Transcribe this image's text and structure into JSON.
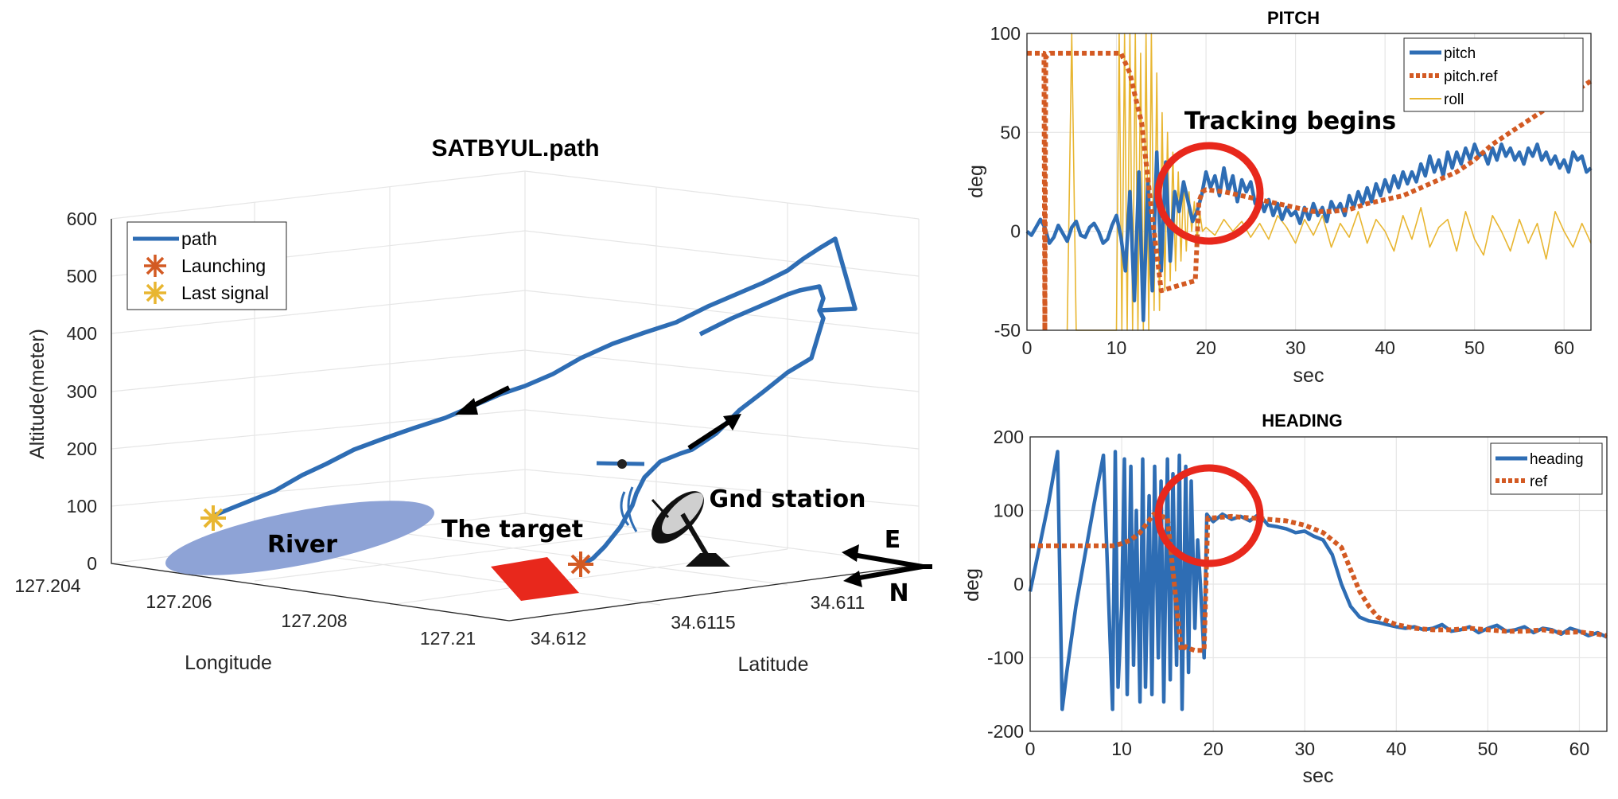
{
  "chart_data": [
    {
      "type": "line3d",
      "title": "SATBYUL.path",
      "xlabel": "Longitude",
      "ylabel": "Latitude",
      "zlabel": "Altitude(meter)",
      "xticks": [
        "127.204",
        "127.206",
        "127.208",
        "127.21"
      ],
      "yticks": [
        "34.612",
        "34.6115",
        "34.611"
      ],
      "zticks": [
        "0",
        "100",
        "200",
        "300",
        "400",
        "500",
        "600"
      ],
      "legend": [
        "path",
        "Launching",
        "Last signal"
      ],
      "annotations": {
        "river": "River",
        "target": "The target",
        "gnd_station": "Gnd station",
        "compass_e": "E",
        "compass_n": "N"
      },
      "colors": {
        "path": "#2e6db4",
        "launching": "#d35a23",
        "last_signal": "#e8b631",
        "river": "#8ea3d6",
        "target": "#e8281c"
      }
    },
    {
      "type": "line",
      "title": "PITCH",
      "xlabel": "sec",
      "ylabel": "deg",
      "xlim": [
        0,
        63
      ],
      "ylim": [
        -50,
        100
      ],
      "xticks": [
        "0",
        "10",
        "20",
        "30",
        "40",
        "50",
        "60"
      ],
      "yticks": [
        "-50",
        "0",
        "50",
        "100"
      ],
      "annotation": "Tracking begins",
      "series": [
        {
          "name": "pitch",
          "color": "#2e6db4",
          "x": [
            0,
            0.5,
            1,
            1.5,
            2,
            2.5,
            3,
            3.5,
            4,
            4.5,
            5,
            5.5,
            6,
            6.5,
            7,
            7.5,
            8,
            8.5,
            9,
            9.5,
            10,
            10.5,
            11,
            11.5,
            12,
            12.5,
            13,
            13.5,
            14,
            14.5,
            15,
            15.5,
            16,
            16.5,
            17,
            17.5,
            18,
            18.5,
            19,
            19.5,
            20,
            20.5,
            21,
            21.5,
            22,
            22.5,
            23,
            23.5,
            24,
            24.5,
            25,
            25.5,
            26,
            26.5,
            27,
            27.5,
            28,
            28.5,
            29,
            29.5,
            30,
            30.5,
            31,
            31.5,
            32,
            32.5,
            33,
            33.5,
            34,
            34.5,
            35,
            35.5,
            36,
            36.5,
            37,
            37.5,
            38,
            38.5,
            39,
            39.5,
            40,
            40.5,
            41,
            41.5,
            42,
            42.5,
            43,
            43.5,
            44,
            44.5,
            45,
            45.5,
            46,
            46.5,
            47,
            47.5,
            48,
            48.5,
            49,
            49.5,
            50,
            50.5,
            51,
            51.5,
            52,
            52.5,
            53,
            53.5,
            54,
            54.5,
            55,
            55.5,
            56,
            56.5,
            57,
            57.5,
            58,
            58.5,
            59,
            59.5,
            60,
            60.5,
            61,
            61.5,
            62,
            62.5,
            63
          ],
          "values": [
            0,
            -2,
            2,
            6,
            2,
            -6,
            -3,
            3,
            -1,
            -5,
            2,
            5,
            -2,
            -3,
            2,
            4,
            0,
            -6,
            -4,
            3,
            8,
            -3,
            -20,
            20,
            -35,
            30,
            -45,
            25,
            -30,
            40,
            -20,
            35,
            -15,
            20,
            10,
            25,
            15,
            5,
            10,
            18,
            30,
            22,
            28,
            18,
            32,
            20,
            28,
            15,
            26,
            20,
            25,
            14,
            18,
            10,
            16,
            8,
            14,
            6,
            12,
            8,
            10,
            4,
            12,
            6,
            14,
            8,
            12,
            5,
            15,
            10,
            14,
            8,
            18,
            12,
            20,
            14,
            22,
            15,
            24,
            18,
            26,
            20,
            28,
            22,
            30,
            24,
            30,
            25,
            34,
            28,
            38,
            30,
            36,
            28,
            40,
            32,
            40,
            34,
            42,
            36,
            44,
            38,
            40,
            34,
            42,
            36,
            44,
            38,
            42,
            36,
            40,
            34,
            42,
            38,
            44,
            36,
            40,
            34,
            38,
            32,
            36,
            30,
            40,
            36,
            38,
            30,
            32
          ]
        },
        {
          "name": "pitch.ref",
          "color": "#d35a23",
          "x": [
            0,
            1.9,
            2.0,
            2.1,
            2.6,
            10.5,
            11.5,
            12.0,
            12.8,
            13.8,
            15.0,
            16.5,
            18.0,
            18.8,
            19.2,
            19.6,
            20.0,
            22,
            24,
            26,
            28,
            30,
            32,
            34,
            36,
            38,
            40,
            42,
            44,
            46,
            48,
            50,
            52,
            54,
            56,
            58,
            60,
            62,
            63
          ],
          "values": [
            90,
            90,
            -50,
            88,
            90,
            90,
            80,
            70,
            55,
            15,
            -30,
            -28,
            -26,
            -25,
            15,
            20,
            21,
            20,
            18,
            16,
            14,
            12,
            10,
            10,
            11,
            14,
            16,
            18,
            22,
            26,
            30,
            36,
            44,
            50,
            56,
            62,
            68,
            73,
            76
          ]
        },
        {
          "name": "roll",
          "color": "#e8b631",
          "x": [
            4.5,
            5,
            5.5,
            10,
            10.3,
            10.6,
            10.9,
            11.2,
            11.5,
            11.8,
            12.1,
            12.4,
            12.7,
            13,
            13.3,
            13.6,
            13.9,
            14.2,
            14.5,
            14.8,
            15.1,
            15.4,
            15.7,
            16,
            16.3,
            16.6,
            16.9,
            17.2,
            17.5,
            17.8,
            18.1,
            18.4,
            18.7,
            19,
            19.3,
            19.6,
            20,
            21,
            22,
            23,
            24,
            25,
            26,
            27,
            28,
            29,
            30,
            31,
            32,
            33,
            34,
            35,
            36,
            37,
            38,
            39,
            40,
            41,
            42,
            43,
            44,
            45,
            46,
            47,
            48,
            49,
            50,
            51,
            52,
            53,
            54,
            55,
            56,
            57,
            58,
            59,
            60,
            61,
            62,
            63
          ],
          "values": [
            -50,
            100,
            -50,
            -50,
            100,
            -50,
            100,
            -50,
            100,
            -50,
            100,
            -50,
            90,
            -50,
            100,
            -50,
            100,
            -40,
            80,
            -40,
            60,
            -30,
            50,
            -25,
            40,
            -20,
            30,
            -15,
            25,
            -10,
            20,
            0,
            15,
            -5,
            10,
            0,
            2,
            -2,
            6,
            0,
            5,
            -3,
            4,
            -4,
            8,
            2,
            -6,
            6,
            -2,
            8,
            -8,
            4,
            -3,
            10,
            -6,
            6,
            0,
            -10,
            8,
            -4,
            12,
            -8,
            2,
            6,
            -10,
            10,
            -4,
            -12,
            8,
            0,
            -10,
            6,
            -6,
            4,
            -14,
            10,
            0,
            -8,
            4,
            -6
          ]
        }
      ]
    },
    {
      "type": "line",
      "title": "HEADING",
      "xlabel": "sec",
      "ylabel": "deg",
      "xlim": [
        0,
        63
      ],
      "ylim": [
        -200,
        200
      ],
      "xticks": [
        "0",
        "10",
        "20",
        "30",
        "40",
        "50",
        "60"
      ],
      "yticks": [
        "-200",
        "-100",
        "0",
        "100",
        "200"
      ],
      "series": [
        {
          "name": "heading",
          "color": "#2e6db4",
          "x": [
            0,
            1,
            2,
            3,
            3.5,
            4,
            5,
            6,
            7,
            8,
            9,
            9.3,
            9.6,
            10,
            10.3,
            10.6,
            11,
            11.3,
            11.6,
            12,
            12.3,
            12.6,
            13,
            13.3,
            13.6,
            14,
            14.3,
            14.6,
            15,
            15.3,
            15.6,
            16,
            16.3,
            16.6,
            17,
            17.3,
            17.6,
            18,
            18.3,
            18.6,
            19,
            19.3,
            19.6,
            20,
            21,
            22,
            23,
            24,
            25,
            26,
            27,
            28,
            29,
            30,
            31,
            32,
            33,
            34,
            35,
            36,
            37,
            38,
            39,
            40,
            41,
            42,
            43,
            44,
            45,
            46,
            47,
            48,
            49,
            50,
            51,
            52,
            53,
            54,
            55,
            56,
            57,
            58,
            59,
            60,
            61,
            62,
            63
          ],
          "values": [
            -10,
            50,
            110,
            180,
            -170,
            -120,
            -30,
            40,
            110,
            175,
            -170,
            180,
            -140,
            -30,
            170,
            -150,
            160,
            -110,
            100,
            -160,
            170,
            -140,
            120,
            -150,
            160,
            -100,
            140,
            -160,
            170,
            -130,
            150,
            -110,
            175,
            -170,
            160,
            -120,
            140,
            -60,
            60,
            0,
            -100,
            95,
            90,
            85,
            95,
            88,
            92,
            86,
            95,
            80,
            78,
            75,
            70,
            72,
            65,
            60,
            40,
            0,
            -30,
            -45,
            -50,
            -52,
            -55,
            -58,
            -60,
            -58,
            -62,
            -60,
            -55,
            -64,
            -62,
            -58,
            -66,
            -60,
            -56,
            -64,
            -62,
            -58,
            -66,
            -60,
            -62,
            -68,
            -60,
            -64,
            -70,
            -66,
            -72
          ]
        },
        {
          "name": "ref",
          "color": "#d35a23",
          "x": [
            0,
            9,
            10,
            11,
            12.0,
            13.5,
            15.0,
            16.5,
            17.0,
            17.5,
            18,
            19.0,
            19.4,
            20,
            22,
            24,
            26,
            28,
            30,
            32,
            34,
            35,
            36,
            37,
            38,
            40,
            42,
            44,
            46,
            48,
            50,
            52,
            54,
            56,
            58,
            60,
            62,
            63
          ],
          "values": [
            52,
            52,
            55,
            60,
            70,
            95,
            90,
            -90,
            -85,
            -88,
            -90,
            -90,
            90,
            90,
            92,
            90,
            88,
            86,
            80,
            70,
            50,
            20,
            -10,
            -30,
            -45,
            -55,
            -60,
            -62,
            -62,
            -60,
            -62,
            -64,
            -64,
            -62,
            -66,
            -65,
            -68,
            -70
          ]
        }
      ]
    }
  ]
}
